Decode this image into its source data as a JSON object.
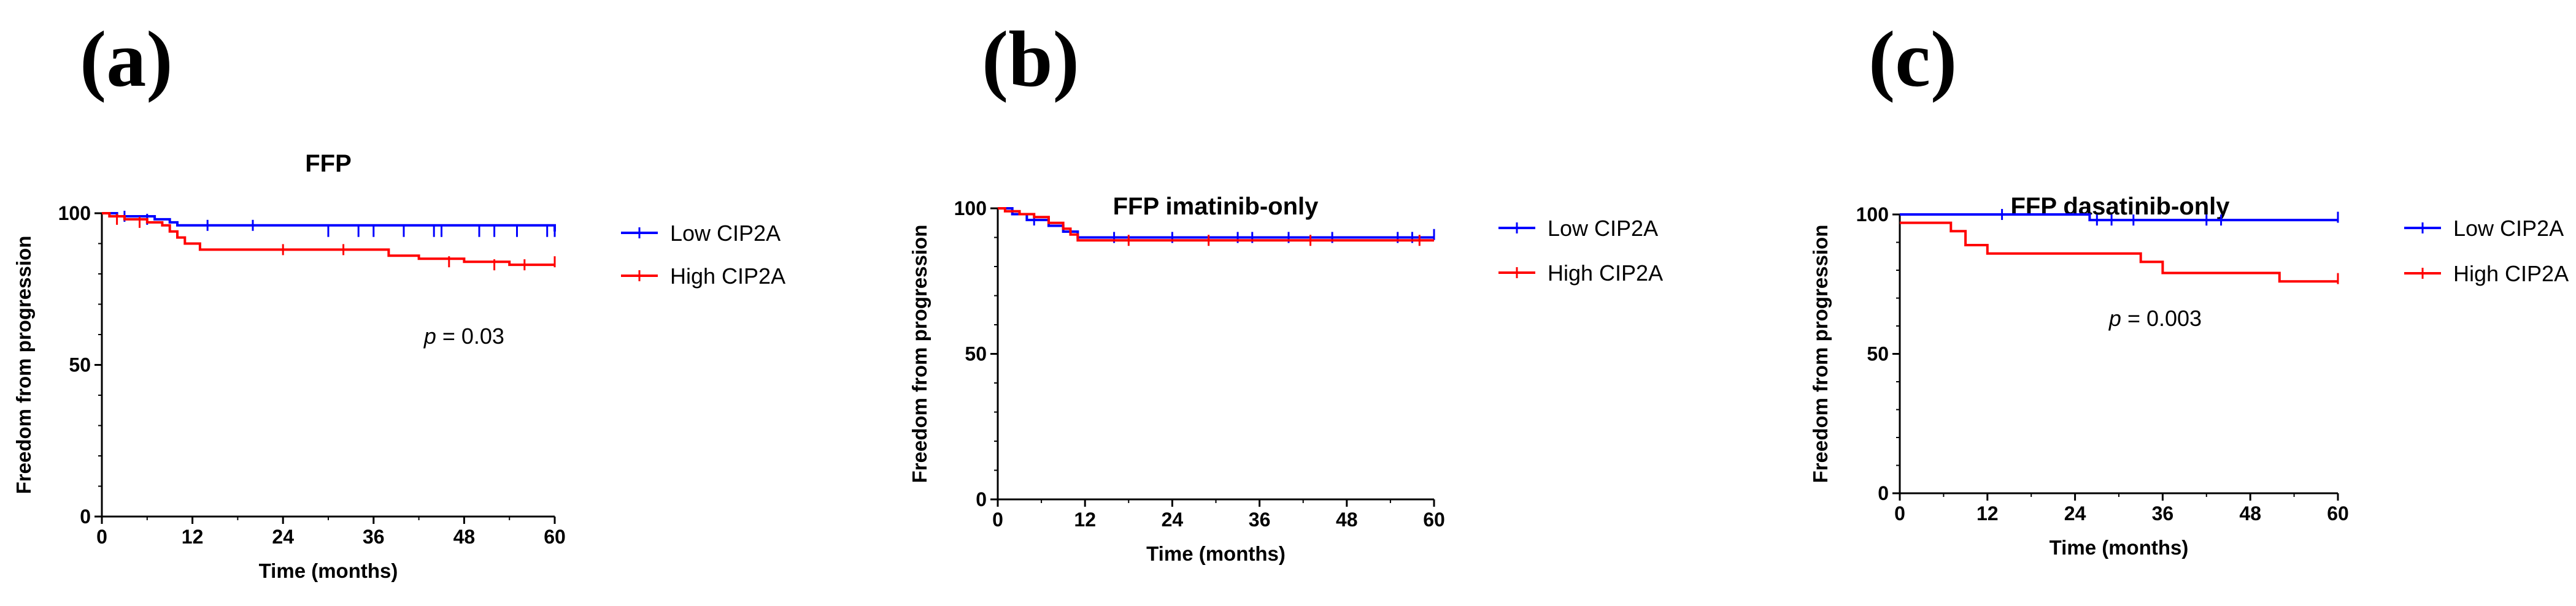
{
  "chart_data": [
    {
      "panel_label": "(a)",
      "type": "line",
      "title": "FFP",
      "xlabel": "Time (months)",
      "ylabel": "Freedom from progression",
      "xlim": [
        0,
        60
      ],
      "ylim": [
        0,
        100
      ],
      "x_ticks": [
        0,
        12,
        24,
        36,
        48,
        60
      ],
      "y_ticks": [
        0,
        50,
        100
      ],
      "annotation": {
        "prefix": "p",
        "text": " = 0.03",
        "at": [
          48,
          57
        ]
      },
      "series": [
        {
          "name": "Low CIP2A",
          "color": "#0000ff",
          "steps": [
            [
              0,
              100
            ],
            [
              2,
              99
            ],
            [
              7,
              98
            ],
            [
              9,
              97
            ],
            [
              10,
              96
            ],
            [
              60,
              94
            ]
          ],
          "censors": [
            [
              3,
              99
            ],
            [
              6,
              98
            ],
            [
              14,
              96
            ],
            [
              20,
              96
            ],
            [
              30,
              94
            ],
            [
              34,
              94
            ],
            [
              36,
              94
            ],
            [
              40,
              94
            ],
            [
              44,
              94
            ],
            [
              45,
              94
            ],
            [
              50,
              94
            ],
            [
              52,
              94
            ],
            [
              55,
              94
            ],
            [
              59,
              94
            ],
            [
              60,
              94
            ]
          ]
        },
        {
          "name": "High CIP2A",
          "color": "#ff0000",
          "steps": [
            [
              0,
              100
            ],
            [
              1,
              99
            ],
            [
              3,
              98
            ],
            [
              6,
              97
            ],
            [
              8,
              96
            ],
            [
              9,
              94
            ],
            [
              10,
              92
            ],
            [
              11,
              90
            ],
            [
              13,
              88
            ],
            [
              38,
              86
            ],
            [
              42,
              85
            ],
            [
              48,
              84
            ],
            [
              54,
              83
            ],
            [
              60,
              83
            ]
          ],
          "censors": [
            [
              2,
              98
            ],
            [
              5,
              97
            ],
            [
              24,
              88
            ],
            [
              32,
              88
            ],
            [
              46,
              84
            ],
            [
              52,
              83
            ],
            [
              56,
              83
            ],
            [
              60,
              84
            ]
          ]
        }
      ]
    },
    {
      "panel_label": "(b)",
      "type": "line",
      "title": "FFP imatinib-only",
      "xlabel": "Time (months)",
      "ylabel": "Freedom from progression",
      "xlim": [
        0,
        60
      ],
      "ylim": [
        0,
        100
      ],
      "x_ticks": [
        0,
        12,
        24,
        36,
        48,
        60
      ],
      "y_ticks": [
        0,
        50,
        100
      ],
      "series": [
        {
          "name": "Low CIP2A",
          "color": "#0000ff",
          "steps": [
            [
              0,
              100
            ],
            [
              2,
              98
            ],
            [
              4,
              96
            ],
            [
              7,
              94
            ],
            [
              9,
              92
            ],
            [
              11,
              90
            ],
            [
              60,
              90
            ]
          ],
          "censors": [
            [
              5,
              96
            ],
            [
              16,
              90
            ],
            [
              24,
              90
            ],
            [
              33,
              90
            ],
            [
              35,
              90
            ],
            [
              40,
              90
            ],
            [
              46,
              90
            ],
            [
              55,
              90
            ],
            [
              57,
              90
            ],
            [
              60,
              91
            ]
          ]
        },
        {
          "name": "High CIP2A",
          "color": "#ff0000",
          "steps": [
            [
              0,
              100
            ],
            [
              1,
              99
            ],
            [
              3,
              98
            ],
            [
              5,
              97
            ],
            [
              7,
              95
            ],
            [
              9,
              93
            ],
            [
              10,
              91
            ],
            [
              11,
              89
            ],
            [
              60,
              89
            ]
          ],
          "censors": [
            [
              18,
              89
            ],
            [
              29,
              89
            ],
            [
              43,
              89
            ],
            [
              58,
              89
            ]
          ]
        }
      ]
    },
    {
      "panel_label": "(c)",
      "type": "line",
      "title": "FFP dasatinib-only",
      "xlabel": "Time (months)",
      "ylabel": "Freedom from progression",
      "xlim": [
        0,
        60
      ],
      "ylim": [
        0,
        100
      ],
      "x_ticks": [
        0,
        12,
        24,
        36,
        48,
        60
      ],
      "y_ticks": [
        0,
        50,
        100
      ],
      "annotation": {
        "prefix": "p",
        "text": " = 0.003",
        "at": [
          35,
          60
        ]
      },
      "series": [
        {
          "name": "Low CIP2A",
          "color": "#0000ff",
          "steps": [
            [
              0,
              100
            ],
            [
              26,
              98
            ],
            [
              60,
              98
            ]
          ],
          "censors": [
            [
              14,
              100
            ],
            [
              27,
              98
            ],
            [
              29,
              98
            ],
            [
              32,
              98
            ],
            [
              42,
              98
            ],
            [
              44,
              98
            ],
            [
              60,
              99
            ]
          ]
        },
        {
          "name": "High CIP2A",
          "color": "#ff0000",
          "steps": [
            [
              0,
              97
            ],
            [
              7,
              94
            ],
            [
              9,
              89
            ],
            [
              12,
              86
            ],
            [
              33,
              83
            ],
            [
              36,
              79
            ],
            [
              52,
              76
            ],
            [
              60,
              76
            ]
          ],
          "censors": [
            [
              60,
              77
            ]
          ]
        }
      ]
    }
  ]
}
